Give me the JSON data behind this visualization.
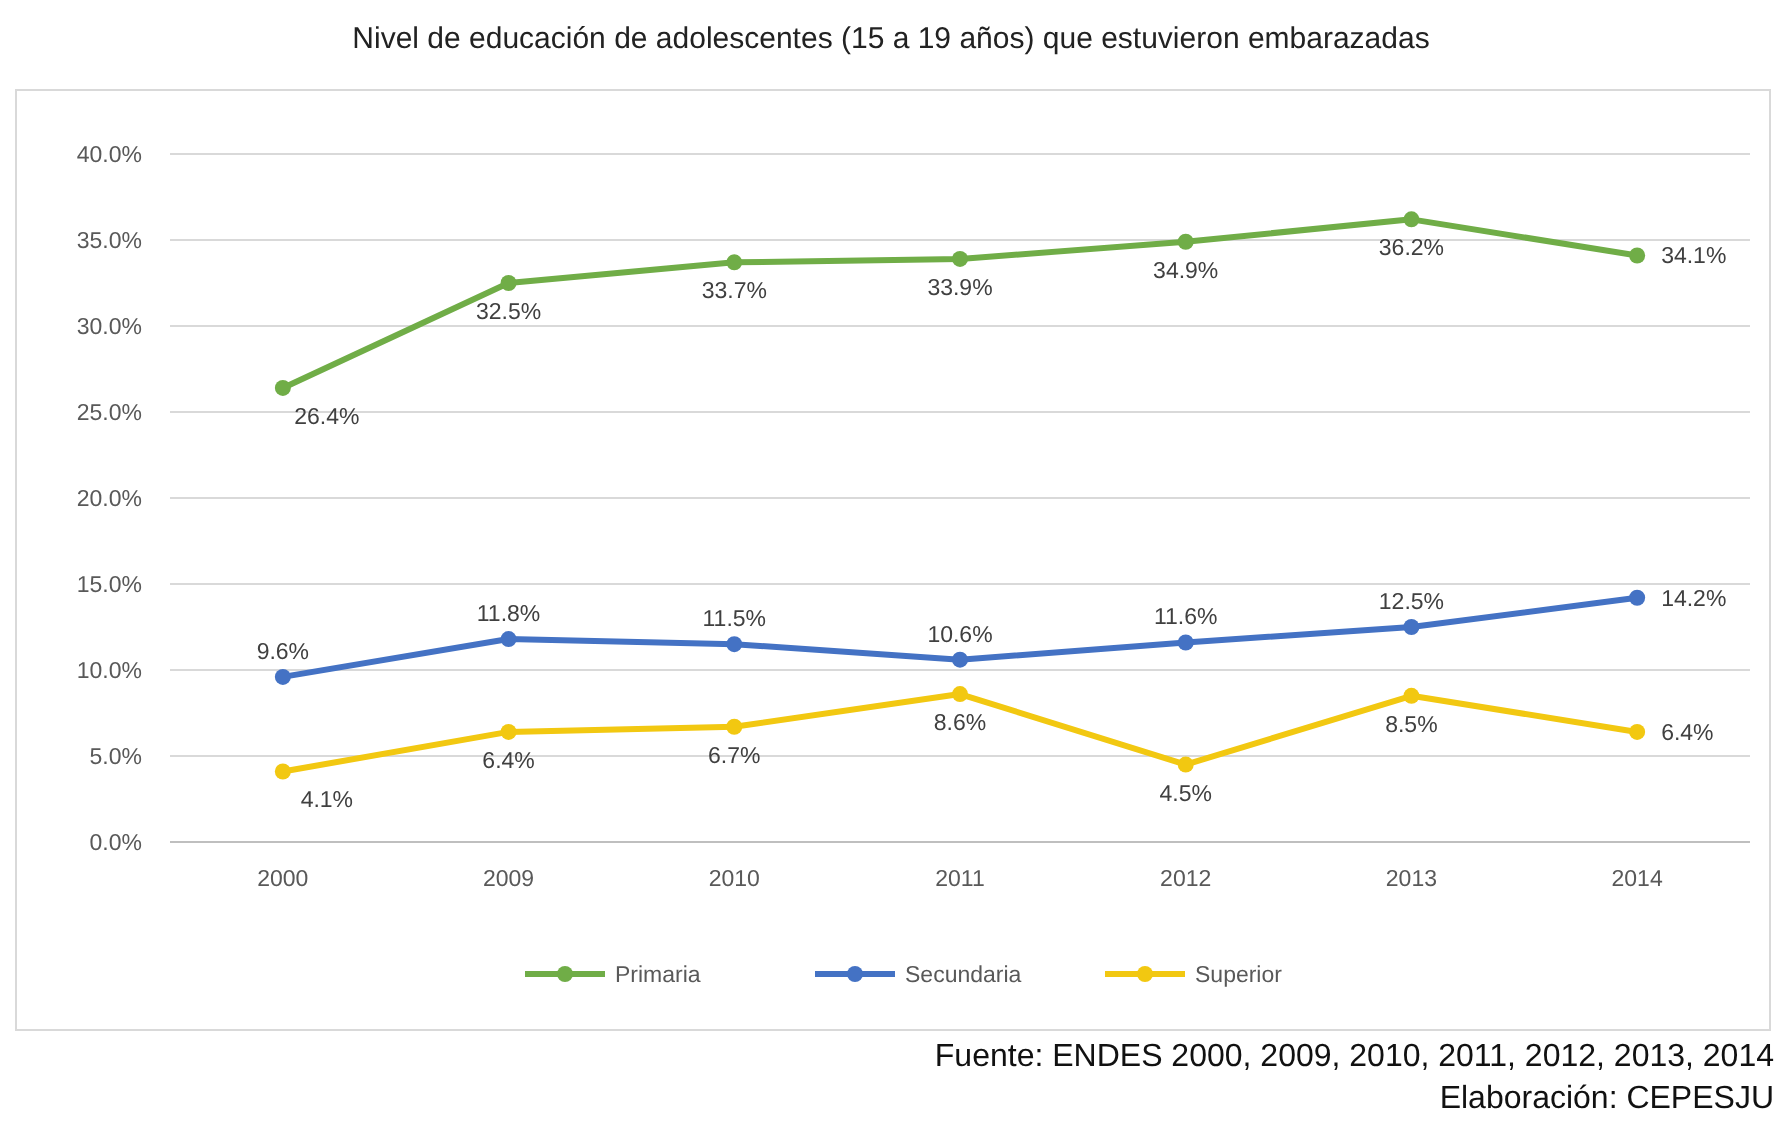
{
  "chart_data": {
    "type": "line",
    "title": "Nivel de educación de adolescentes (15 a 19 años) que estuvieron embarazadas",
    "categories": [
      "2000",
      "2009",
      "2010",
      "2011",
      "2012",
      "2013",
      "2014"
    ],
    "series": [
      {
        "name": "Primaria",
        "color": "#70ad47",
        "values": [
          26.4,
          32.5,
          33.7,
          33.9,
          34.9,
          36.2,
          34.1
        ],
        "value_labels": [
          "26.4%",
          "32.5%",
          "33.7%",
          "33.9%",
          "34.9%",
          "36.2%",
          "34.1%"
        ]
      },
      {
        "name": "Secundaria",
        "color": "#4472c4",
        "values": [
          9.6,
          11.8,
          11.5,
          10.6,
          11.6,
          12.5,
          14.2
        ],
        "value_labels": [
          "9.6%",
          "11.8%",
          "11.5%",
          "10.6%",
          "11.6%",
          "12.5%",
          "14.2%"
        ]
      },
      {
        "name": "Superior",
        "color": "#f2c811",
        "values": [
          4.1,
          6.4,
          6.7,
          8.6,
          4.5,
          8.5,
          6.4
        ],
        "value_labels": [
          "4.1%",
          "6.4%",
          "6.7%",
          "8.6%",
          "4.5%",
          "8.5%",
          "6.4%"
        ]
      }
    ],
    "ylim": [
      0,
      40
    ],
    "yticks": [
      {
        "value": 0,
        "label": "0.0%"
      },
      {
        "value": 5,
        "label": "5.0%"
      },
      {
        "value": 10,
        "label": "10.0%"
      },
      {
        "value": 15,
        "label": "15.0%"
      },
      {
        "value": 20,
        "label": "20.0%"
      },
      {
        "value": 25,
        "label": "25.0%"
      },
      {
        "value": 30,
        "label": "30.0%"
      },
      {
        "value": 35,
        "label": "35.0%"
      },
      {
        "value": 40,
        "label": "40.0%"
      }
    ],
    "grid": "y",
    "legend": "bottom",
    "marker": "circle",
    "line_style": "solid",
    "annotations": [
      "Fuente: ENDES 2000, 2009, 2010, 2011, 2012, 2013, 2014",
      "Elaboración: CEPESJU"
    ]
  }
}
